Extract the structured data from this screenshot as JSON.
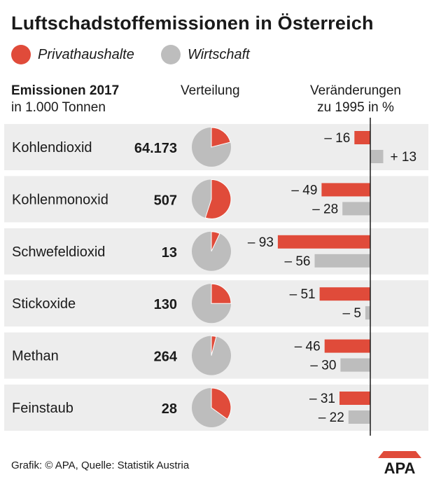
{
  "title": "Luftschadstoffemissionen in Österreich",
  "legend": [
    {
      "label": "Privathaushalte",
      "color": "#e04b3a"
    },
    {
      "label": "Wirtschaft",
      "color": "#bdbdbd"
    }
  ],
  "headers": {
    "left_line1": "Emissionen 2017",
    "left_line2": "in 1.000 Tonnen",
    "middle": "Verteilung",
    "right_line1": "Veränderungen",
    "right_line2": "zu 1995 in %"
  },
  "chart_data": {
    "type": "table",
    "units": "1.000 Tonnen",
    "series": [
      {
        "name": "Privathaushalte",
        "color": "#e04b3a"
      },
      {
        "name": "Wirtschaft",
        "color": "#bdbdbd"
      }
    ],
    "rows": [
      {
        "label": "Kohlendioxid",
        "value_label": "64.173",
        "value": 64173,
        "share_privat": 0.21,
        "change_privat": -16,
        "change_privat_label": "– 16",
        "change_wirtschaft": 13,
        "change_wirtschaft_label": "+ 13"
      },
      {
        "label": "Kohlenmonoxid",
        "value_label": "507",
        "value": 507,
        "share_privat": 0.55,
        "change_privat": -49,
        "change_privat_label": "– 49",
        "change_wirtschaft": -28,
        "change_wirtschaft_label": "– 28"
      },
      {
        "label": "Schwefeldioxid",
        "value_label": "13",
        "value": 13,
        "share_privat": 0.07,
        "change_privat": -93,
        "change_privat_label": "– 93",
        "change_wirtschaft": -56,
        "change_wirtschaft_label": "– 56"
      },
      {
        "label": "Stickoxide",
        "value_label": "130",
        "value": 130,
        "share_privat": 0.25,
        "change_privat": -51,
        "change_privat_label": "– 51",
        "change_wirtschaft": -5,
        "change_wirtschaft_label": "– 5"
      },
      {
        "label": "Methan",
        "value_label": "264",
        "value": 264,
        "share_privat": 0.04,
        "change_privat": -46,
        "change_privat_label": "– 46",
        "change_wirtschaft": -30,
        "change_wirtschaft_label": "– 30"
      },
      {
        "label": "Feinstaub",
        "value_label": "28",
        "value": 28,
        "share_privat": 0.35,
        "change_privat": -31,
        "change_privat_label": "– 31",
        "change_wirtschaft": -22,
        "change_wirtschaft_label": "– 22"
      }
    ]
  },
  "footer": "Grafik: © APA, Quelle: Statistik Austria",
  "logo_text": "APA"
}
